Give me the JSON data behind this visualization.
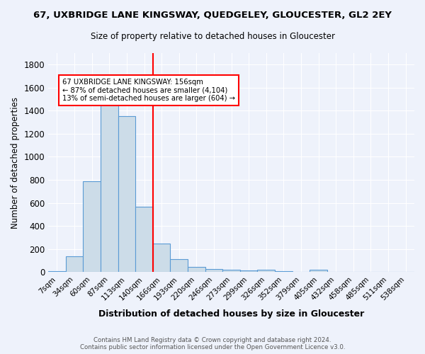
{
  "title": "67, UXBRIDGE LANE KINGSWAY, QUEDGELEY, GLOUCESTER, GL2 2EY",
  "subtitle": "Size of property relative to detached houses in Gloucester",
  "xlabel": "Distribution of detached houses by size in Gloucester",
  "ylabel": "Number of detached properties",
  "footnote1": "Contains HM Land Registry data © Crown copyright and database right 2024.",
  "footnote2": "Contains public sector information licensed under the Open Government Licence v3.0.",
  "bin_labels": [
    "7sqm",
    "34sqm",
    "60sqm",
    "87sqm",
    "113sqm",
    "140sqm",
    "166sqm",
    "193sqm",
    "220sqm",
    "246sqm",
    "273sqm",
    "299sqm",
    "326sqm",
    "352sqm",
    "379sqm",
    "405sqm",
    "432sqm",
    "458sqm",
    "485sqm",
    "511sqm",
    "538sqm"
  ],
  "bar_values": [
    10,
    137,
    787,
    1463,
    1356,
    568,
    248,
    110,
    42,
    28,
    18,
    14,
    20,
    10,
    0,
    22,
    0,
    0,
    0,
    0,
    0
  ],
  "bar_color": "#ccdce8",
  "bar_edge_color": "#5b9bd5",
  "vline_x": 5,
  "vline_color": "red",
  "vline_label": "67 UXBRIDGE LANE KINGSWAY: 156sqm",
  "annotation_line2": "← 87% of detached houses are smaller (4,104)",
  "annotation_line3": "13% of semi-detached houses are larger (604) →",
  "annotation_box_color": "white",
  "annotation_border_color": "red",
  "ylim": [
    0,
    1900
  ],
  "yticks": [
    0,
    200,
    400,
    600,
    800,
    1000,
    1200,
    1400,
    1600,
    1800
  ],
  "background_color": "#eef2fb",
  "grid_color": "white",
  "bin_width": 27,
  "vline_bin_index": 5.52
}
